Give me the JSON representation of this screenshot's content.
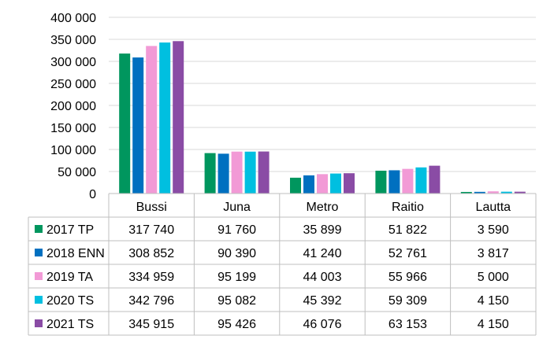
{
  "chart_data": {
    "type": "bar",
    "categories": [
      "Bussi",
      "Juna",
      "Metro",
      "Raitio",
      "Lautta"
    ],
    "series": [
      {
        "name": "2017 TP",
        "color": "#00965e",
        "values": [
          317740,
          91760,
          35899,
          51822,
          3590
        ],
        "labels": [
          "317 740",
          "91 760",
          "35 899",
          "51 822",
          "3 590"
        ]
      },
      {
        "name": "2018 ENN",
        "color": "#0070c0",
        "values": [
          308852,
          90390,
          41240,
          52761,
          3817
        ],
        "labels": [
          "308 852",
          "90 390",
          "41 240",
          "52 761",
          "3 817"
        ]
      },
      {
        "name": "2019 TA",
        "color": "#f29ad6",
        "values": [
          334959,
          95199,
          44003,
          55966,
          5000
        ],
        "labels": [
          "334 959",
          "95 199",
          "44 003",
          "55 966",
          "5 000"
        ]
      },
      {
        "name": "2020 TS",
        "color": "#00bfe0",
        "values": [
          342796,
          95082,
          45392,
          59309,
          4150
        ],
        "labels": [
          "342 796",
          "95 082",
          "45 392",
          "59 309",
          "4 150"
        ]
      },
      {
        "name": "2021 TS",
        "color": "#8a4ca5",
        "values": [
          345915,
          95426,
          46076,
          63153,
          4150
        ],
        "labels": [
          "345 915",
          "95 426",
          "46 076",
          "63 153",
          "4 150"
        ]
      }
    ],
    "yticks": [
      "0",
      "50 000",
      "100 000",
      "150 000",
      "200 000",
      "250 000",
      "300 000",
      "350 000",
      "400 000"
    ],
    "ylim": [
      0,
      400000
    ],
    "grid": true,
    "legend": "data-table"
  }
}
